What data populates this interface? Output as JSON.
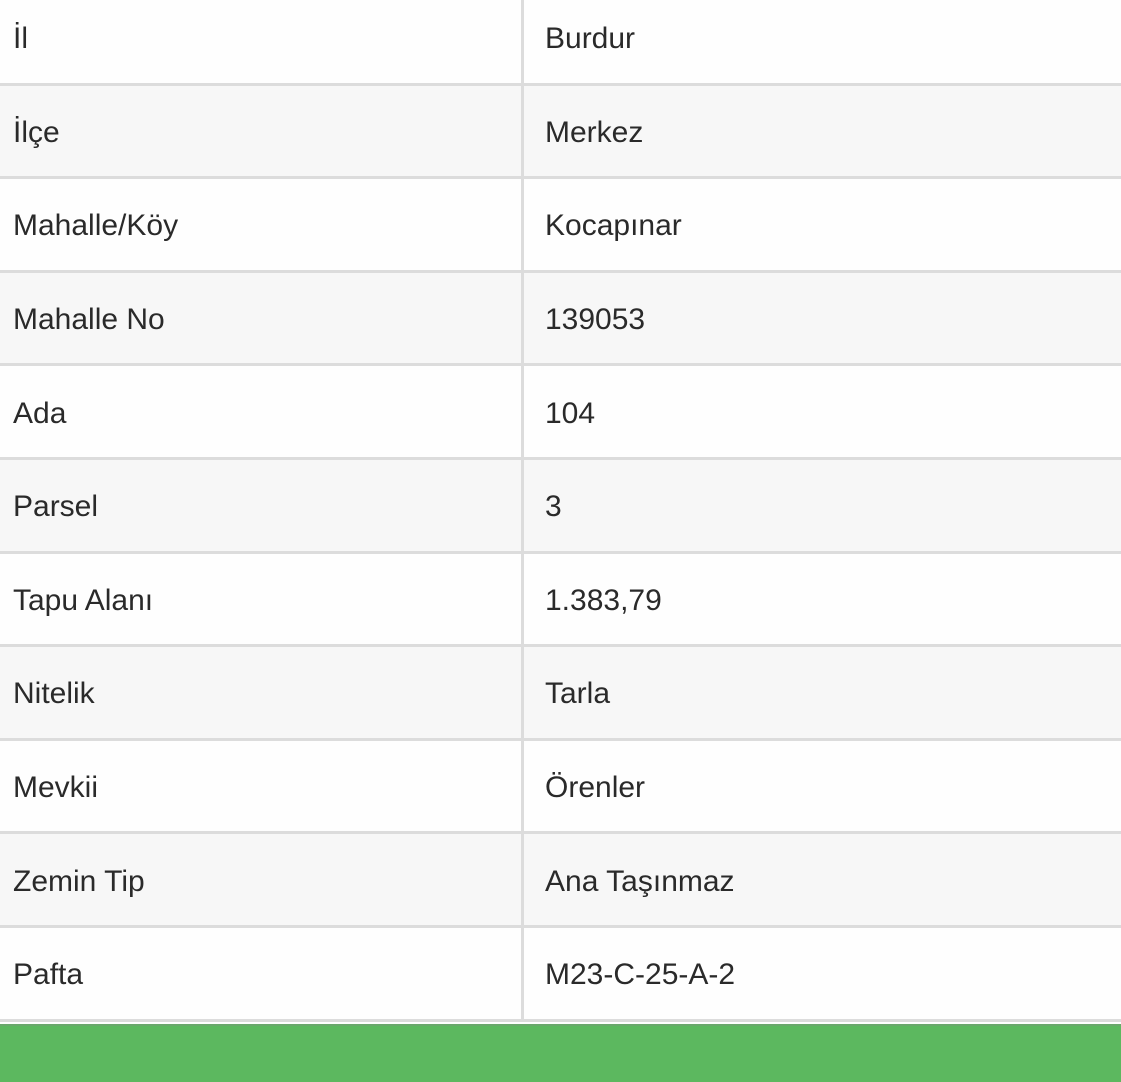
{
  "rows": [
    {
      "label": "İl",
      "value": "Burdur"
    },
    {
      "label": "İlçe",
      "value": "Merkez"
    },
    {
      "label": "Mahalle/Köy",
      "value": "Kocapınar"
    },
    {
      "label": "Mahalle No",
      "value": "139053"
    },
    {
      "label": "Ada",
      "value": "104"
    },
    {
      "label": "Parsel",
      "value": "3"
    },
    {
      "label": "Tapu Alanı",
      "value": "1.383,79"
    },
    {
      "label": "Nitelik",
      "value": "Tarla"
    },
    {
      "label": "Mevkii",
      "value": "Örenler"
    },
    {
      "label": "Zemin Tip",
      "value": "Ana Taşınmaz"
    },
    {
      "label": "Pafta",
      "value": "M23-C-25-A-2"
    }
  ],
  "colors": {
    "footer": "#5cb85f",
    "border": "#dcdcdc"
  }
}
